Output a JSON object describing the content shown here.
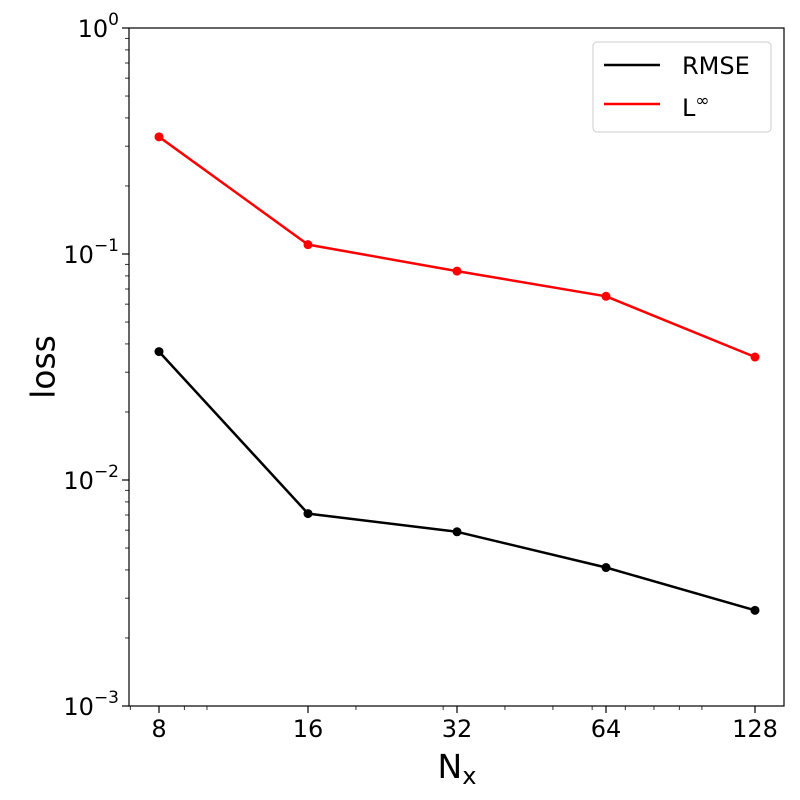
{
  "chart_data": {
    "type": "line",
    "xscale": "log2",
    "yscale": "log10",
    "xlabel": "N",
    "xlabel_sub": "x",
    "ylabel": "loss",
    "x": [
      8,
      16,
      32,
      64,
      128
    ],
    "x_tick_labels": [
      "8",
      "16",
      "32",
      "64",
      "128"
    ],
    "ylim": [
      0.001,
      1
    ],
    "y_ticks": [
      {
        "value": 1,
        "base": "10",
        "exp": "0"
      },
      {
        "value": 0.1,
        "base": "10",
        "exp": "−1"
      },
      {
        "value": 0.01,
        "base": "10",
        "exp": "−2"
      },
      {
        "value": 0.001,
        "base": "10",
        "exp": "−3"
      }
    ],
    "grid": false,
    "legend_position": "top-right",
    "series": [
      {
        "name": "RMSE",
        "color": "#000000",
        "values": [
          0.037,
          0.0071,
          0.0059,
          0.0041,
          0.00265
        ]
      },
      {
        "name_base": "L",
        "name_sup": "∞",
        "color": "#ff0000",
        "values": [
          0.33,
          0.11,
          0.084,
          0.065,
          0.035
        ]
      }
    ]
  }
}
